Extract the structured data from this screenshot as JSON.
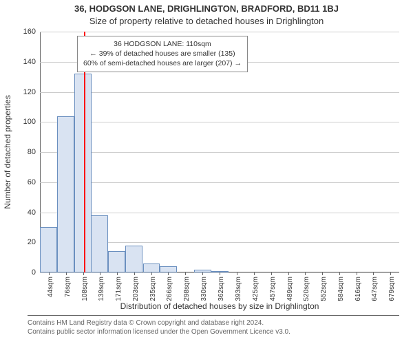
{
  "title_main": "36, HODGSON LANE, DRIGHLINGTON, BRADFORD, BD11 1BJ",
  "title_sub": "Size of property relative to detached houses in Drighlington",
  "y_axis_label": "Number of detached properties",
  "x_axis_label": "Distribution of detached houses by size in Drighlington",
  "footer_line1": "Contains HM Land Registry data © Crown copyright and database right 2024.",
  "footer_line2": "Contains public sector information licensed under the Open Government Licence v3.0.",
  "chart": {
    "type": "histogram",
    "background_color": "#ffffff",
    "grid_color": "#cccccc",
    "axis_color": "#666666",
    "bar_fill_color": "#d9e3f2",
    "bar_border_color": "#6a8fbf",
    "marker_color": "#ff0000",
    "text_color": "#333333",
    "ylim": [
      0,
      160
    ],
    "ytick_step": 20,
    "yticks": [
      0,
      20,
      40,
      60,
      80,
      100,
      120,
      140,
      160
    ],
    "x_tick_labels": [
      "44sqm",
      "76sqm",
      "108sqm",
      "139sqm",
      "171sqm",
      "203sqm",
      "235sqm",
      "266sqm",
      "298sqm",
      "330sqm",
      "362sqm",
      "393sqm",
      "425sqm",
      "457sqm",
      "489sqm",
      "520sqm",
      "552sqm",
      "584sqm",
      "616sqm",
      "647sqm",
      "679sqm"
    ],
    "x_tick_positions": [
      44,
      76,
      108,
      139,
      171,
      203,
      235,
      266,
      298,
      330,
      362,
      393,
      425,
      457,
      489,
      520,
      552,
      584,
      616,
      647,
      679
    ],
    "x_domain": [
      28,
      695
    ],
    "bars": [
      {
        "x": 44,
        "w": 32,
        "y": 30
      },
      {
        "x": 76,
        "w": 32,
        "y": 104
      },
      {
        "x": 108,
        "w": 31,
        "y": 132
      },
      {
        "x": 139,
        "w": 32,
        "y": 38
      },
      {
        "x": 171,
        "w": 32,
        "y": 14
      },
      {
        "x": 203,
        "w": 32,
        "y": 18
      },
      {
        "x": 235,
        "w": 31,
        "y": 6
      },
      {
        "x": 266,
        "w": 32,
        "y": 4
      },
      {
        "x": 298,
        "w": 32,
        "y": 0
      },
      {
        "x": 330,
        "w": 32,
        "y": 2
      },
      {
        "x": 362,
        "w": 31,
        "y": 1
      },
      {
        "x": 393,
        "w": 32,
        "y": 0
      },
      {
        "x": 425,
        "w": 32,
        "y": 0
      },
      {
        "x": 457,
        "w": 32,
        "y": 0
      },
      {
        "x": 489,
        "w": 31,
        "y": 0
      },
      {
        "x": 520,
        "w": 32,
        "y": 0
      },
      {
        "x": 552,
        "w": 32,
        "y": 0
      },
      {
        "x": 584,
        "w": 32,
        "y": 0
      },
      {
        "x": 616,
        "w": 31,
        "y": 0
      },
      {
        "x": 647,
        "w": 32,
        "y": 0
      }
    ],
    "marker_x": 110,
    "annotation": {
      "line1": "36 HODGSON LANE: 110sqm",
      "line2": "← 39% of detached houses are smaller (135)",
      "line3": "60% of semi-detached houses are larger (207) →",
      "border_color": "#888888",
      "bg_color": "#ffffff",
      "font_size": 10.5
    }
  }
}
